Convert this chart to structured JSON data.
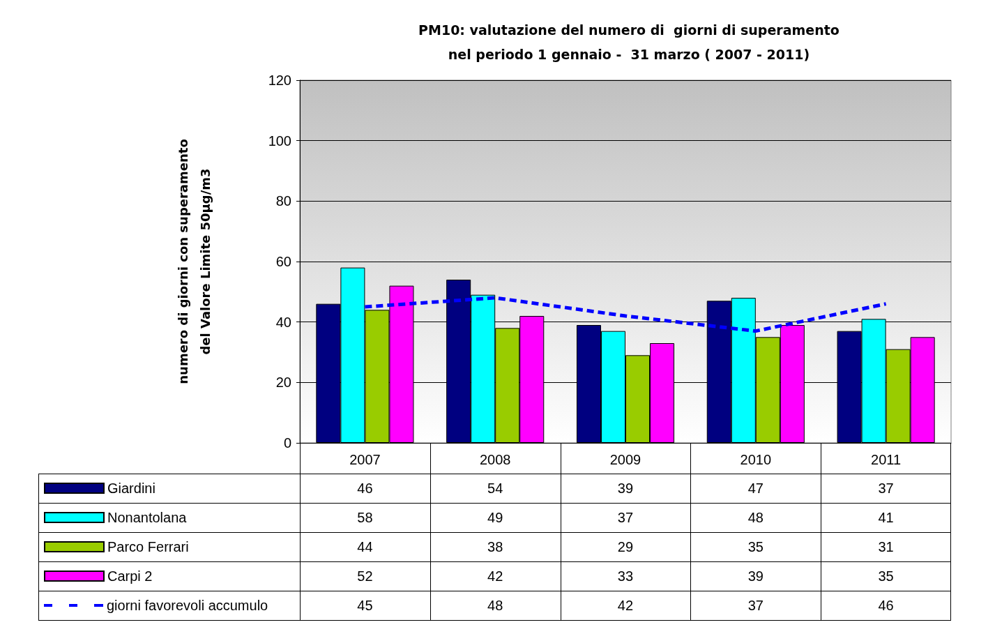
{
  "chart_data": {
    "type": "bar",
    "title": "PM10: valutazione del numero di  giorni di superamento\nnel periodo 1 gennaio -  31 marzo ( 2007 - 2011)",
    "ylabel": "numero di giorni con superamento\ndel Valore Limite 50µg/m3",
    "categories": [
      "2007",
      "2008",
      "2009",
      "2010",
      "2011"
    ],
    "series": [
      {
        "name": "Giardini",
        "color": "#000080",
        "values": [
          46,
          54,
          39,
          47,
          37
        ]
      },
      {
        "name": "Nonantolana",
        "color": "#00ffff",
        "values": [
          58,
          49,
          37,
          48,
          41
        ]
      },
      {
        "name": "Parco Ferrari",
        "color": "#99cc00",
        "values": [
          44,
          38,
          29,
          35,
          31
        ]
      },
      {
        "name": "Carpi 2",
        "color": "#ff00ff",
        "values": [
          52,
          42,
          33,
          39,
          35
        ]
      },
      {
        "name": "giorni favorevoli accumulo",
        "type": "line",
        "color": "#0000ff",
        "line_style": "dashed",
        "marker": "none",
        "values": [
          45,
          48,
          42,
          37,
          46
        ]
      }
    ],
    "ylim": [
      0,
      120
    ],
    "yticks": [
      0,
      20,
      40,
      60,
      80,
      100,
      120
    ],
    "grid": "y",
    "legend": "bottom left",
    "data_labels": true
  }
}
